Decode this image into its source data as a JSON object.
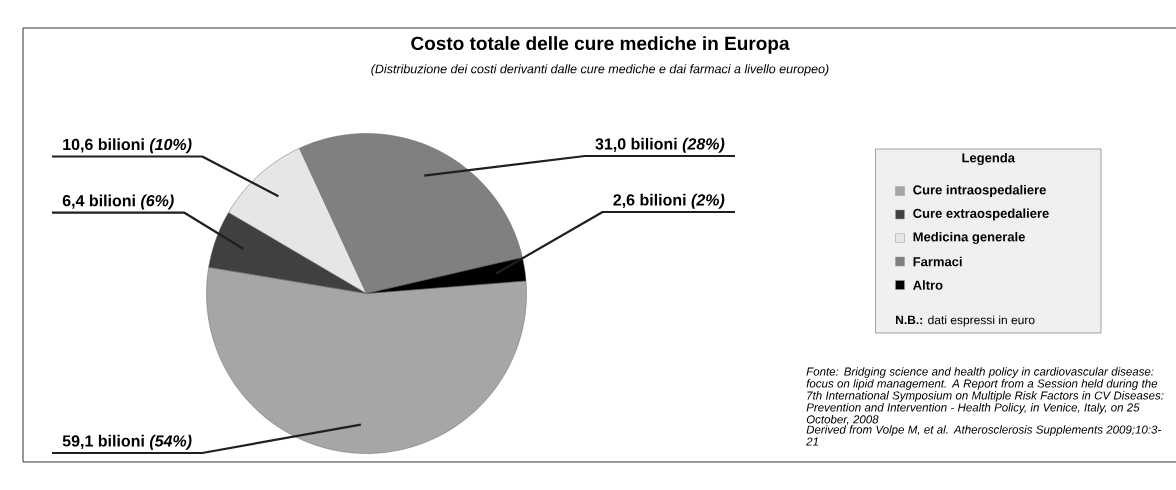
{
  "chart_data": {
    "type": "pie",
    "title": "Costo totale delle cure mediche in Europa",
    "subtitle": "(Distribuzione dei costi derivanti dalle cure mediche e dai farmaci a livello europeo)",
    "legend_title": "Legenda",
    "legend": "right",
    "categories": [
      "Cure intraospedaliere",
      "Cure extraospedaliere",
      "Medicina generale",
      "Farmaci",
      "Altro"
    ],
    "values": [
      59.1,
      6.4,
      10.6,
      31.0,
      2.6
    ],
    "colors": [
      "#a6a6a6",
      "#404040",
      "#e6e6e6",
      "#808080",
      "#000000"
    ],
    "value_labels": [
      "59,1 bilioni *(54%)*",
      "6,4 bilioni *(6%)*",
      "10,6 bilioni *(10%)*",
      "31,0 bilioni *(28%)*",
      "2,6 bilioni *(2%)*"
    ],
    "annotations": [
      "**N.B.:** dati espressi in euro",
      "Fonte: Bridging science and health policy in cardiovascular disease: focus on lipid management. A Report from a Session held during the 7th International Symposium on Multiple Risk Factors in CV Diseases: Prevention and Intervention - Health Policy, in Venice, Italy, on 25 October, 2008",
      "Derived from Volpe M, et al. Atherosclerosis Supplements 2009;10:3-21"
    ]
  }
}
